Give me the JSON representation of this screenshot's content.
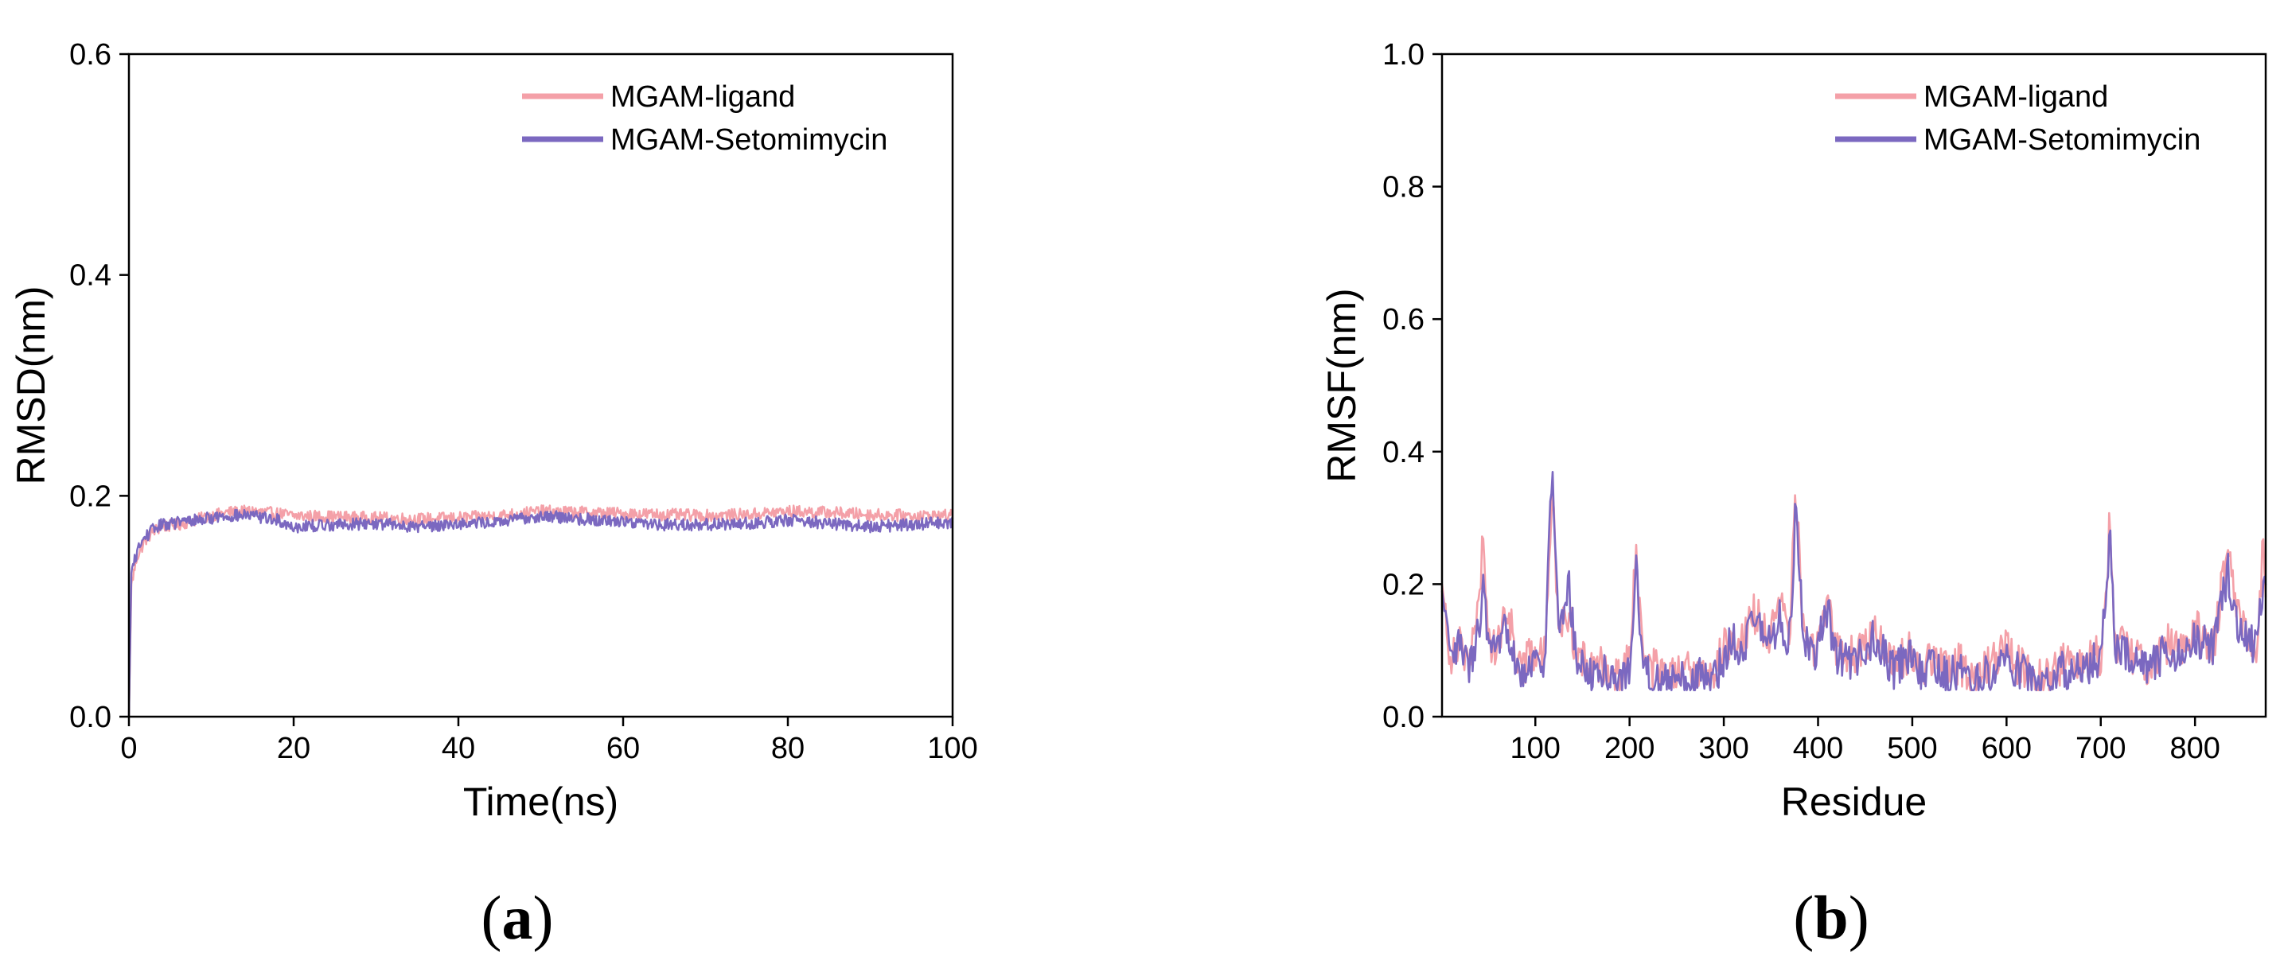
{
  "colors": {
    "ligand": "#f4a0a8",
    "setomimycin": "#7b68c0"
  },
  "panels": [
    {
      "label_open": "(",
      "label_letter": "a",
      "label_close": ")"
    },
    {
      "label_open": "(",
      "label_letter": "b",
      "label_close": ")"
    }
  ],
  "chart_data": [
    {
      "type": "line",
      "xlabel": "Time(ns)",
      "ylabel": "RMSD(nm)",
      "xlim": [
        0,
        100
      ],
      "ylim": [
        0,
        0.6
      ],
      "xticks": [
        0,
        20,
        40,
        60,
        80,
        100
      ],
      "xtick_labels": [
        "0",
        "20",
        "40",
        "60",
        "80",
        "100"
      ],
      "yticks": [
        0.0,
        0.2,
        0.4,
        0.6
      ],
      "ytick_labels": [
        "0.0",
        "0.2",
        "0.4",
        "0.6"
      ],
      "legend_position": "top-right",
      "series": [
        {
          "name": "MGAM-ligand",
          "color_key": "ligand",
          "x": [
            0,
            0.3,
            1,
            2,
            3,
            4,
            6,
            8,
            10,
            12,
            15,
            18,
            20,
            25,
            30,
            35,
            40,
            45,
            50,
            55,
            60,
            65,
            70,
            75,
            80,
            85,
            90,
            95,
            100
          ],
          "y": [
            0.0,
            0.12,
            0.145,
            0.16,
            0.168,
            0.172,
            0.174,
            0.178,
            0.182,
            0.185,
            0.186,
            0.184,
            0.182,
            0.181,
            0.18,
            0.179,
            0.18,
            0.182,
            0.186,
            0.185,
            0.184,
            0.183,
            0.182,
            0.183,
            0.186,
            0.185,
            0.183,
            0.182,
            0.182
          ],
          "noise": 0.0055
        },
        {
          "name": "MGAM-Setomimycin",
          "color_key": "setomimycin",
          "x": [
            0,
            0.3,
            1,
            2,
            3,
            4,
            6,
            8,
            10,
            12,
            15,
            18,
            20,
            25,
            30,
            35,
            40,
            45,
            50,
            55,
            60,
            65,
            70,
            75,
            80,
            85,
            90,
            95,
            100
          ],
          "y": [
            0.0,
            0.13,
            0.15,
            0.163,
            0.17,
            0.174,
            0.176,
            0.178,
            0.18,
            0.182,
            0.182,
            0.178,
            0.172,
            0.174,
            0.175,
            0.172,
            0.175,
            0.176,
            0.182,
            0.179,
            0.177,
            0.174,
            0.174,
            0.175,
            0.178,
            0.175,
            0.172,
            0.174,
            0.176
          ],
          "noise": 0.0055
        }
      ]
    },
    {
      "type": "line",
      "xlabel": "Residue",
      "ylabel": "RMSF(nm)",
      "xlim": [
        1,
        875
      ],
      "ylim": [
        0,
        1.0
      ],
      "xticks": [
        100,
        200,
        300,
        400,
        500,
        600,
        700,
        800
      ],
      "xtick_labels": [
        "100",
        "200",
        "300",
        "400",
        "500",
        "600",
        "700",
        "800"
      ],
      "yticks": [
        0.0,
        0.2,
        0.4,
        0.6,
        0.8,
        1.0
      ],
      "ytick_labels": [
        "0.0",
        "0.2",
        "0.4",
        "0.6",
        "0.8",
        "1.0"
      ],
      "legend_position": "top-right",
      "series": [
        {
          "name": "MGAM-ligand",
          "color_key": "ligand",
          "x": [
            1,
            10,
            20,
            30,
            40,
            45,
            50,
            60,
            70,
            80,
            90,
            100,
            110,
            118,
            125,
            135,
            145,
            160,
            175,
            190,
            200,
            207,
            215,
            230,
            250,
            270,
            290,
            300,
            310,
            320,
            330,
            340,
            350,
            360,
            370,
            376,
            385,
            395,
            410,
            420,
            440,
            460,
            480,
            500,
            510,
            520,
            535,
            550,
            570,
            590,
            600,
            610,
            625,
            640,
            660,
            680,
            695,
            700,
            710,
            715,
            730,
            750,
            770,
            790,
            800,
            810,
            820,
            835,
            845,
            855,
            865,
            872,
            875
          ],
          "y": [
            0.2,
            0.09,
            0.12,
            0.08,
            0.16,
            0.28,
            0.12,
            0.1,
            0.17,
            0.09,
            0.08,
            0.1,
            0.09,
            0.34,
            0.12,
            0.16,
            0.09,
            0.07,
            0.08,
            0.06,
            0.09,
            0.25,
            0.08,
            0.07,
            0.06,
            0.07,
            0.07,
            0.1,
            0.13,
            0.11,
            0.16,
            0.14,
            0.12,
            0.17,
            0.12,
            0.35,
            0.13,
            0.09,
            0.18,
            0.1,
            0.09,
            0.13,
            0.08,
            0.1,
            0.07,
            0.09,
            0.07,
            0.08,
            0.06,
            0.09,
            0.11,
            0.08,
            0.07,
            0.06,
            0.08,
            0.08,
            0.1,
            0.09,
            0.3,
            0.11,
            0.1,
            0.08,
            0.11,
            0.1,
            0.13,
            0.12,
            0.11,
            0.26,
            0.15,
            0.13,
            0.11,
            0.25,
            0.18
          ],
          "noise": 0.032,
          "samples": 700
        },
        {
          "name": "MGAM-Setomimycin",
          "color_key": "setomimycin",
          "x": [
            1,
            10,
            20,
            30,
            40,
            45,
            50,
            60,
            70,
            80,
            90,
            100,
            110,
            118,
            125,
            135,
            145,
            160,
            175,
            190,
            200,
            207,
            215,
            230,
            250,
            270,
            290,
            300,
            310,
            320,
            330,
            340,
            350,
            360,
            370,
            376,
            385,
            395,
            410,
            420,
            440,
            460,
            480,
            500,
            510,
            520,
            535,
            550,
            570,
            590,
            600,
            610,
            625,
            640,
            660,
            680,
            695,
            700,
            710,
            715,
            730,
            750,
            770,
            790,
            800,
            810,
            820,
            835,
            845,
            855,
            865,
            872,
            875
          ],
          "y": [
            0.19,
            0.08,
            0.11,
            0.07,
            0.13,
            0.2,
            0.1,
            0.09,
            0.14,
            0.08,
            0.07,
            0.09,
            0.08,
            0.39,
            0.11,
            0.2,
            0.08,
            0.06,
            0.07,
            0.05,
            0.08,
            0.22,
            0.07,
            0.06,
            0.05,
            0.06,
            0.06,
            0.09,
            0.12,
            0.1,
            0.15,
            0.13,
            0.11,
            0.15,
            0.11,
            0.31,
            0.12,
            0.08,
            0.16,
            0.09,
            0.08,
            0.12,
            0.07,
            0.09,
            0.06,
            0.08,
            0.06,
            0.07,
            0.05,
            0.08,
            0.1,
            0.07,
            0.06,
            0.05,
            0.07,
            0.07,
            0.09,
            0.08,
            0.28,
            0.1,
            0.09,
            0.07,
            0.1,
            0.09,
            0.12,
            0.11,
            0.1,
            0.22,
            0.14,
            0.12,
            0.1,
            0.2,
            0.17
          ],
          "noise": 0.03,
          "samples": 700
        }
      ]
    }
  ]
}
